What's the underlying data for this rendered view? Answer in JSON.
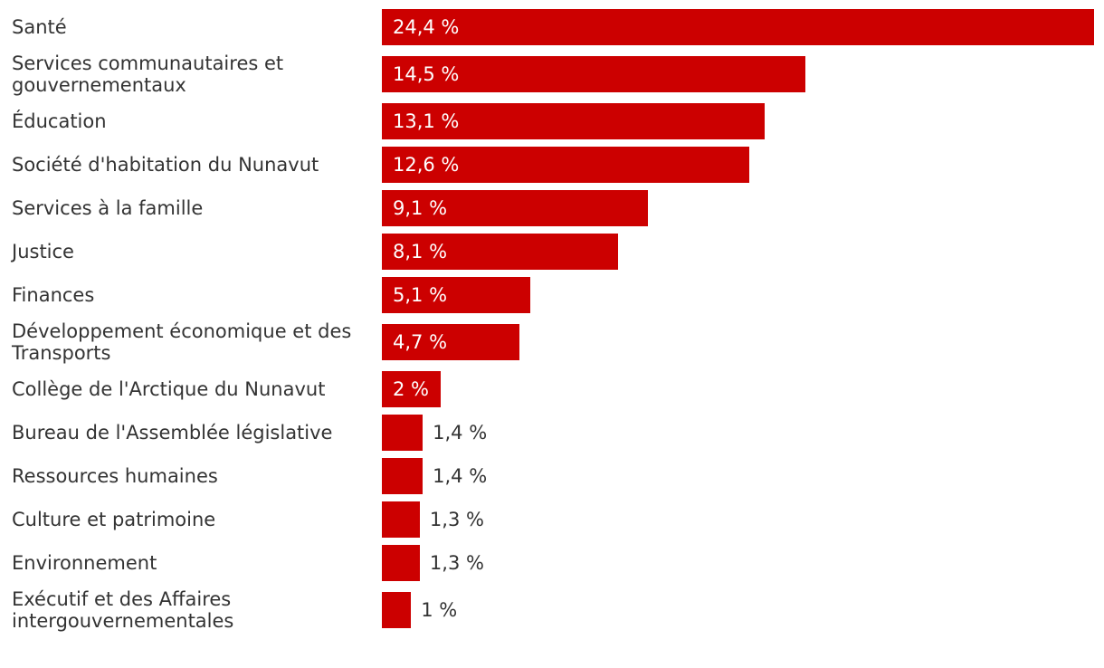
{
  "chart_data": {
    "type": "bar",
    "orientation": "horizontal",
    "title": "",
    "xlabel": "",
    "ylabel": "",
    "grid": false,
    "bar_color": "#cc0000",
    "categories": [
      "Santé",
      "Services communautaires et gouvernementaux",
      "Éducation",
      "Société d'habitation du Nunavut",
      "Services à la famille",
      "Justice",
      "Finances",
      "Développement économique et des Transports",
      "Collège de l'Arctique du Nunavut",
      "Bureau de l'Assemblée législative",
      "Ressources humaines",
      "Culture et patrimoine",
      "Environnement",
      "Exécutif et des Affaires intergouvernementales"
    ],
    "values": [
      24.4,
      14.5,
      13.1,
      12.6,
      9.1,
      8.1,
      5.1,
      4.7,
      2,
      1.4,
      1.4,
      1.3,
      1.3,
      1
    ],
    "value_labels": [
      "24,4 %",
      "14,5 %",
      "13,1 %",
      "12,6 %",
      "9,1 %",
      "8,1 %",
      "5,1 %",
      "4,7 %",
      "2 %",
      "1,4 %",
      "1,4 %",
      "1,3 %",
      "1,3 %",
      "1 %"
    ],
    "xlim": [
      0,
      24.4
    ]
  }
}
